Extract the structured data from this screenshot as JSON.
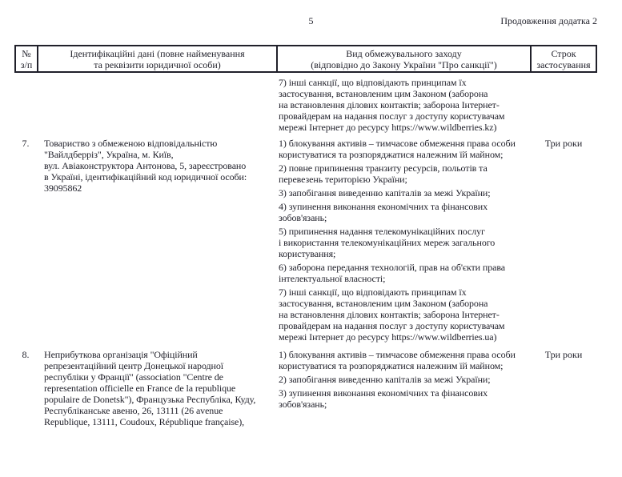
{
  "page": {
    "number": "5",
    "continuation": "Продовження додатка 2"
  },
  "table": {
    "columns": [
      {
        "label": "№\nз/п"
      },
      {
        "label": "Ідентифікаційні дані (повне найменування\nта реквізити юридичної особи)"
      },
      {
        "label": "Вид обмежувального заходу\n(відповідно до Закону України \"Про санкції\")"
      },
      {
        "label": "Строк\nзастосування"
      }
    ],
    "carryover": {
      "measure_tail": "7) інші санкції, що відповідають принципам їх\nзастосування, встановленим цим Законом (заборона\nна встановлення ділових контактів; заборона Інтернет-\nпровайдерам на надання послуг з доступу користувачам\nмережі Інтернет до ресурсу https://www.wildberries.kz)"
    },
    "rows": [
      {
        "num": "7.",
        "identity": "Товариство з обмеженою відповідальністю\n\"Вайлдберріз\", Україна, м. Київ,\nвул. Авіаконструктора Антонова, 5, зареєстровано\nв Україні, ідентифікаційний код юридичної особи:\n39095862",
        "measures": [
          "1) блокування активів – тимчасове обмеження права особи\nкористуватися та розпоряджатися належним їй майном;",
          "2) повне припинення транзиту ресурсів, польотів та\nперевезень територією України;",
          "3) запобігання виведенню капіталів за межі України;",
          "4) зупинення виконання економічних та фінансових\nзобов'язань;",
          "5) припинення надання телекомунікаційних послуг\nі використання телекомунікаційних мереж загального\nкористування;",
          "6) заборона передання технологій, прав на об'єкти права\nінтелектуальної власності;",
          "7) інші санкції, що відповідають принципам їх\nзастосування, встановленим цим Законом (заборона\nна встановлення ділових контактів; заборона Інтернет-\nпровайдерам на надання послуг з доступу користувачам\nмережі Інтернет до ресурсу https://www.wildberries.ua)"
        ],
        "term": "Три роки"
      },
      {
        "num": "8.",
        "identity": "Неприбуткова організація \"Офіційний\nрепрезентаційний центр Донецької народної\nреспубліки у Франції\" (association \"Centre de\nrepresentation officielle en France de la republique\npopulaire de Donetsk\"), Французька Республіка, Куду,\nРеспубліканське авеню, 26, 13111 (26 avenue\nRepublique, 13111, Coudoux, République française),",
        "measures": [
          "1) блокування активів – тимчасове обмеження права особи\nкористуватися та розпоряджатися належним їй майном;",
          "2) запобігання виведенню капіталів за межі України;",
          "3) зупинення виконання економічних та фінансових\nзобов'язань;"
        ],
        "term": "Три роки"
      }
    ]
  }
}
